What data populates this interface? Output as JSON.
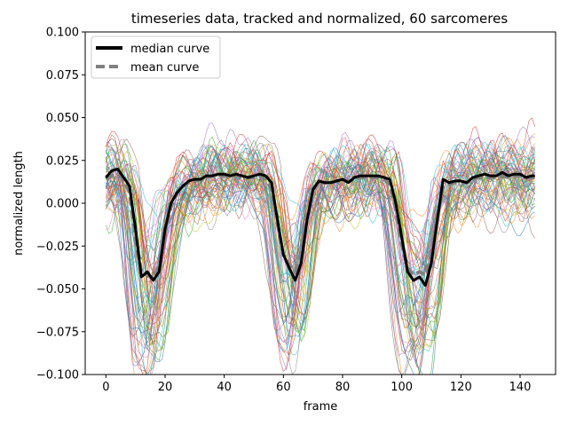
{
  "chart_data": {
    "type": "line",
    "title": "timeseries data, tracked and normalized, 60 sarcomeres",
    "xlabel": "frame",
    "ylabel": "normalized length",
    "xlim": [
      -7,
      152
    ],
    "ylim": [
      -0.1,
      0.1
    ],
    "xticks": [
      0,
      20,
      40,
      60,
      80,
      100,
      120,
      140
    ],
    "yticks": [
      -0.1,
      -0.075,
      -0.05,
      -0.025,
      0.0,
      0.025,
      0.05,
      0.075,
      0.1
    ],
    "ytick_labels": [
      "−0.100",
      "−0.075",
      "−0.050",
      "−0.025",
      "0.000",
      "0.025",
      "0.050",
      "0.075",
      "0.100"
    ],
    "grid": false,
    "legend_position": "upper-left",
    "n_background_traces": 60,
    "series": [
      {
        "name": "median curve",
        "style": "solid",
        "color": "#000000",
        "x": [
          0,
          2,
          4,
          6,
          8,
          10,
          12,
          14,
          16,
          18,
          20,
          22,
          24,
          26,
          28,
          30,
          32,
          34,
          36,
          38,
          40,
          42,
          44,
          46,
          48,
          50,
          52,
          54,
          56,
          58,
          60,
          62,
          64,
          66,
          68,
          70,
          72,
          74,
          76,
          78,
          80,
          82,
          84,
          86,
          88,
          90,
          92,
          94,
          96,
          98,
          100,
          102,
          104,
          106,
          108,
          110,
          112,
          114,
          116,
          118,
          120,
          122,
          124,
          126,
          128,
          130,
          132,
          134,
          136,
          138,
          140,
          142,
          144,
          145
        ],
        "y": [
          0.015,
          0.019,
          0.02,
          0.015,
          0.01,
          -0.015,
          -0.043,
          -0.04,
          -0.045,
          -0.04,
          -0.015,
          0.0,
          0.006,
          0.01,
          0.013,
          0.014,
          0.014,
          0.016,
          0.016,
          0.017,
          0.017,
          0.016,
          0.017,
          0.016,
          0.015,
          0.016,
          0.017,
          0.016,
          0.012,
          -0.01,
          -0.03,
          -0.038,
          -0.045,
          -0.035,
          -0.01,
          0.008,
          0.013,
          0.012,
          0.012,
          0.013,
          0.014,
          0.012,
          0.015,
          0.016,
          0.016,
          0.016,
          0.016,
          0.015,
          0.014,
          0.0,
          -0.02,
          -0.04,
          -0.045,
          -0.043,
          -0.048,
          -0.035,
          -0.01,
          0.014,
          0.012,
          0.013,
          0.013,
          0.012,
          0.015,
          0.016,
          0.017,
          0.016,
          0.016,
          0.018,
          0.016,
          0.017,
          0.017,
          0.015,
          0.016,
          0.016
        ]
      },
      {
        "name": "mean curve",
        "style": "dashed",
        "color": "#808080",
        "x": [
          0,
          2,
          4,
          6,
          8,
          10,
          12,
          14,
          16,
          18,
          20,
          22,
          24,
          26,
          28,
          30,
          32,
          34,
          36,
          38,
          40,
          42,
          44,
          46,
          48,
          50,
          52,
          54,
          56,
          58,
          60,
          62,
          64,
          66,
          68,
          70,
          72,
          74,
          76,
          78,
          80,
          82,
          84,
          86,
          88,
          90,
          92,
          94,
          96,
          98,
          100,
          102,
          104,
          106,
          108,
          110,
          112,
          114,
          116,
          118,
          120,
          122,
          124,
          126,
          128,
          130,
          132,
          134,
          136,
          138,
          140,
          142,
          144,
          145
        ],
        "y": [
          0.014,
          0.016,
          0.017,
          0.014,
          0.006,
          -0.02,
          -0.04,
          -0.042,
          -0.044,
          -0.036,
          -0.016,
          -0.002,
          0.006,
          0.01,
          0.012,
          0.013,
          0.014,
          0.015,
          0.016,
          0.016,
          0.016,
          0.016,
          0.016,
          0.015,
          0.015,
          0.015,
          0.016,
          0.015,
          0.008,
          -0.012,
          -0.03,
          -0.036,
          -0.04,
          -0.03,
          -0.008,
          0.008,
          0.012,
          0.012,
          0.012,
          0.013,
          0.013,
          0.013,
          0.014,
          0.015,
          0.015,
          0.015,
          0.015,
          0.014,
          0.011,
          -0.004,
          -0.024,
          -0.038,
          -0.042,
          -0.04,
          -0.042,
          -0.03,
          -0.008,
          0.01,
          0.011,
          0.012,
          0.012,
          0.012,
          0.014,
          0.015,
          0.015,
          0.015,
          0.015,
          0.016,
          0.015,
          0.016,
          0.016,
          0.015,
          0.015,
          0.015
        ]
      }
    ]
  }
}
